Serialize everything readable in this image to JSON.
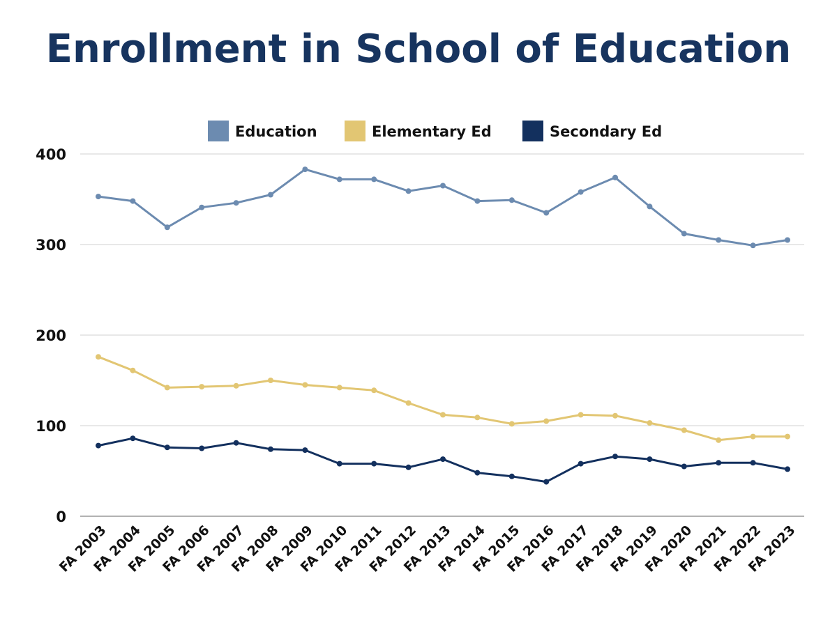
{
  "chart_data": {
    "type": "line",
    "title": "Enrollment in School of Education",
    "xlabel": "",
    "ylabel": "",
    "ylim": [
      0,
      400
    ],
    "yticks": [
      0,
      100,
      200,
      300,
      400
    ],
    "grid": true,
    "legend_placement": "top",
    "categories": [
      "FA 2003",
      "FA 2004",
      "FA 2005",
      "FA 2006",
      "FA 2007",
      "FA 2008",
      "FA 2009",
      "FA 2010",
      "FA 2011",
      "FA 2012",
      "FA 2013",
      "FA 2014",
      "FA 2015",
      "FA 2016",
      "FA 2017",
      "FA 2018",
      "FA 2019",
      "FA 2020",
      "FA 2021",
      "FA 2022",
      "FA 2023"
    ],
    "series": [
      {
        "name": "Education",
        "color": "#6c8bb0",
        "values": [
          353,
          348,
          319,
          341,
          346,
          355,
          383,
          372,
          372,
          359,
          365,
          348,
          349,
          335,
          358,
          374,
          342,
          312,
          305,
          299,
          305
        ]
      },
      {
        "name": "Elementary Ed",
        "color": "#e2c673",
        "values": [
          176,
          161,
          142,
          143,
          144,
          150,
          145,
          142,
          139,
          125,
          112,
          109,
          102,
          105,
          112,
          111,
          103,
          95,
          84,
          88,
          88
        ]
      },
      {
        "name": "Secondary Ed",
        "color": "#13305e",
        "values": [
          78,
          86,
          76,
          75,
          81,
          74,
          73,
          58,
          58,
          54,
          63,
          48,
          44,
          38,
          58,
          66,
          63,
          55,
          59,
          59,
          52
        ]
      }
    ]
  }
}
